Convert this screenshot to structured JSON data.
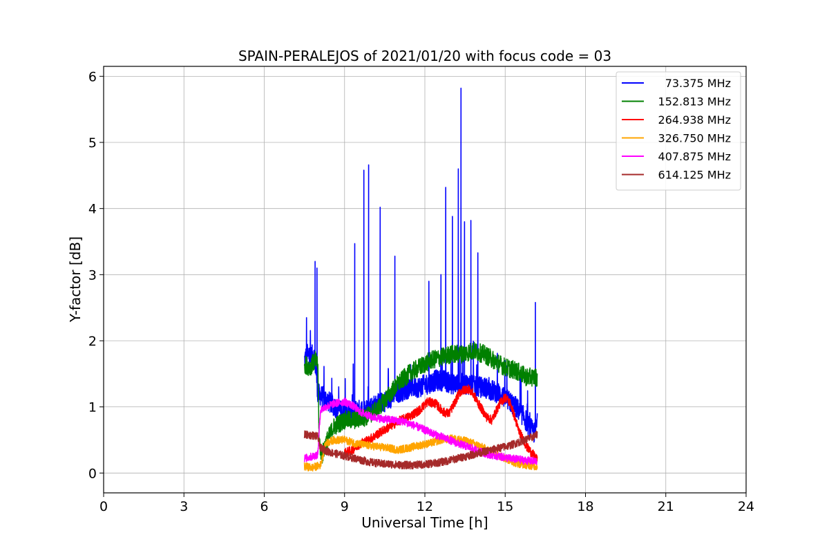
{
  "chart_data": {
    "type": "line",
    "title": "SPAIN-PERALEJOS of 2021/01/20 with focus code = 03",
    "xlabel": "Universal Time [h]",
    "ylabel": "Y-factor [dB]",
    "xlim": [
      0,
      24
    ],
    "ylim": [
      -0.3,
      6.15
    ],
    "xticks": [
      0,
      3,
      6,
      9,
      12,
      15,
      18,
      21,
      24
    ],
    "yticks": [
      0,
      1,
      2,
      3,
      4,
      5,
      6
    ],
    "grid": true,
    "legend_position": "top-right",
    "series": [
      {
        "name": "73.375 MHz",
        "color": "#0000ff",
        "x": [
          7.5,
          7.6,
          7.7,
          7.85,
          7.95,
          8.0,
          8.2,
          8.5,
          8.8,
          9.1,
          9.4,
          9.7,
          10.0,
          10.3,
          10.6,
          10.9,
          11.2,
          11.5,
          11.8,
          12.1,
          12.4,
          12.7,
          13.0,
          13.3,
          13.6,
          13.9,
          14.2,
          14.5,
          14.8,
          15.1,
          15.4,
          15.7,
          15.9,
          16.1,
          16.2
        ],
        "y": [
          1.7,
          1.8,
          1.75,
          1.8,
          1.5,
          1.2,
          1.15,
          1.05,
          0.95,
          0.9,
          0.95,
          0.95,
          1.0,
          1.05,
          1.1,
          1.2,
          1.25,
          1.3,
          1.3,
          1.35,
          1.4,
          1.4,
          1.35,
          1.35,
          1.35,
          1.3,
          1.3,
          1.25,
          1.2,
          1.1,
          1.0,
          0.85,
          0.7,
          0.6,
          0.75
        ],
        "spikes": [
          {
            "x": 7.58,
            "y": 2.35
          },
          {
            "x": 7.9,
            "y": 3.2
          },
          {
            "x": 7.97,
            "y": 3.1
          },
          {
            "x": 9.38,
            "y": 3.47
          },
          {
            "x": 9.72,
            "y": 4.58
          },
          {
            "x": 9.9,
            "y": 4.66
          },
          {
            "x": 10.33,
            "y": 4.02
          },
          {
            "x": 10.88,
            "y": 3.28
          },
          {
            "x": 12.15,
            "y": 2.9
          },
          {
            "x": 12.6,
            "y": 3.0
          },
          {
            "x": 12.78,
            "y": 4.32
          },
          {
            "x": 13.03,
            "y": 3.88
          },
          {
            "x": 13.25,
            "y": 4.6
          },
          {
            "x": 13.35,
            "y": 5.82
          },
          {
            "x": 13.48,
            "y": 3.8
          },
          {
            "x": 13.72,
            "y": 3.82
          },
          {
            "x": 13.98,
            "y": 3.33
          },
          {
            "x": 16.13,
            "y": 2.58
          }
        ]
      },
      {
        "name": "152.813 MHz",
        "color": "#008000",
        "x": [
          7.5,
          7.7,
          7.9,
          8.0,
          8.05,
          8.15,
          8.3,
          8.6,
          9.0,
          9.4,
          9.8,
          10.2,
          10.6,
          11.0,
          11.4,
          11.8,
          12.2,
          12.6,
          13.0,
          13.4,
          13.8,
          14.2,
          14.6,
          15.0,
          15.4,
          15.8,
          16.2
        ],
        "y": [
          1.65,
          1.6,
          1.7,
          1.65,
          0.5,
          0.25,
          0.45,
          0.7,
          0.8,
          0.8,
          0.85,
          0.95,
          1.15,
          1.35,
          1.5,
          1.6,
          1.7,
          1.75,
          1.8,
          1.8,
          1.85,
          1.8,
          1.7,
          1.6,
          1.55,
          1.45,
          1.45
        ]
      },
      {
        "name": "264.938 MHz",
        "color": "#ff0000",
        "x": [
          9.0,
          9.3,
          9.6,
          9.9,
          10.2,
          10.6,
          11.0,
          11.4,
          11.8,
          12.1,
          12.4,
          12.7,
          12.9,
          13.1,
          13.3,
          13.6,
          13.8,
          14.0,
          14.3,
          14.5,
          14.8,
          15.0,
          15.2,
          15.5,
          15.8,
          16.0,
          16.2
        ],
        "y": [
          0.3,
          0.35,
          0.45,
          0.5,
          0.58,
          0.68,
          0.78,
          0.85,
          0.95,
          1.08,
          1.05,
          0.92,
          0.9,
          1.05,
          1.22,
          1.28,
          1.2,
          1.05,
          0.85,
          0.8,
          1.05,
          1.15,
          1.05,
          0.65,
          0.4,
          0.3,
          0.2
        ]
      },
      {
        "name": "326.750 MHz",
        "color": "#ffa500",
        "x": [
          7.5,
          7.8,
          8.1,
          8.3,
          8.6,
          9.0,
          9.4,
          9.8,
          10.2,
          10.6,
          11.0,
          11.4,
          11.8,
          12.2,
          12.6,
          13.0,
          13.4,
          13.8,
          14.2,
          14.6,
          15.0,
          15.4,
          15.8,
          16.2
        ],
        "y": [
          0.1,
          0.08,
          0.12,
          0.45,
          0.5,
          0.5,
          0.45,
          0.42,
          0.4,
          0.38,
          0.35,
          0.38,
          0.42,
          0.45,
          0.5,
          0.52,
          0.5,
          0.45,
          0.38,
          0.3,
          0.22,
          0.15,
          0.12,
          0.1
        ]
      },
      {
        "name": "407.875 MHz",
        "color": "#ff00ff",
        "x": [
          7.5,
          7.8,
          8.0,
          8.1,
          8.3,
          8.6,
          9.0,
          9.3,
          9.6,
          10.0,
          10.4,
          10.8,
          11.2,
          11.6,
          12.0,
          12.4,
          12.8,
          13.2,
          13.6,
          14.0,
          14.4,
          14.8,
          15.2,
          15.6,
          16.0,
          16.2
        ],
        "y": [
          0.22,
          0.25,
          0.28,
          0.95,
          1.0,
          1.05,
          1.08,
          1.02,
          0.92,
          0.85,
          0.82,
          0.8,
          0.78,
          0.72,
          0.65,
          0.58,
          0.52,
          0.45,
          0.4,
          0.33,
          0.28,
          0.25,
          0.22,
          0.2,
          0.18,
          0.18
        ]
      },
      {
        "name": "614.125 MHz",
        "color": "#a52a2a",
        "x": [
          7.5,
          7.8,
          8.0,
          8.1,
          8.4,
          8.8,
          9.2,
          9.6,
          10.0,
          10.4,
          10.8,
          11.2,
          11.6,
          12.0,
          12.4,
          12.8,
          13.2,
          13.6,
          14.0,
          14.4,
          14.8,
          15.2,
          15.6,
          16.0,
          16.2
        ],
        "y": [
          0.58,
          0.57,
          0.55,
          0.38,
          0.32,
          0.28,
          0.24,
          0.2,
          0.16,
          0.14,
          0.13,
          0.12,
          0.12,
          0.13,
          0.15,
          0.18,
          0.22,
          0.26,
          0.3,
          0.34,
          0.38,
          0.42,
          0.48,
          0.54,
          0.58
        ]
      }
    ]
  }
}
